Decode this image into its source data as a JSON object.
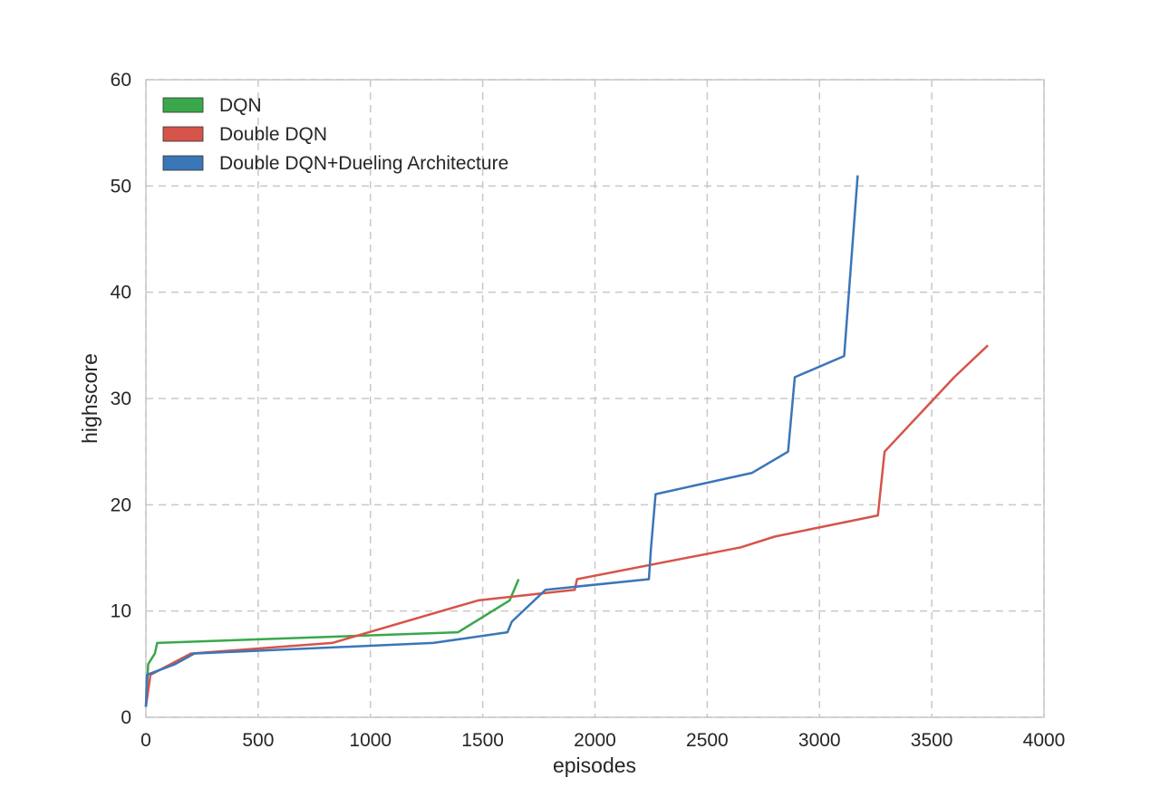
{
  "chart_data": {
    "type": "line",
    "title": "",
    "xlabel": "episodes",
    "ylabel": "highscore",
    "xlim": [
      0,
      4000
    ],
    "ylim": [
      0,
      60
    ],
    "xticks": [
      0,
      500,
      1000,
      1500,
      2000,
      2500,
      3000,
      3500,
      4000
    ],
    "yticks": [
      0,
      10,
      20,
      30,
      40,
      50,
      60
    ],
    "grid": true,
    "legend_position": "top-left",
    "series": [
      {
        "name": "DQN",
        "color": "#3aa84a",
        "x": [
          0,
          10,
          40,
          50,
          1390,
          1620,
          1660
        ],
        "y": [
          1,
          5,
          6,
          7,
          8,
          11,
          13
        ]
      },
      {
        "name": "Double DQN",
        "color": "#d6544a",
        "x": [
          0,
          20,
          200,
          830,
          1480,
          1910,
          1920,
          2650,
          2800,
          3260,
          3290,
          3600,
          3750
        ],
        "y": [
          1,
          4,
          6,
          7,
          11,
          12,
          13,
          16,
          17,
          19,
          25,
          32,
          35
        ]
      },
      {
        "name": "Double DQN+Dueling Architecture",
        "color": "#3a76b8",
        "x": [
          0,
          5,
          130,
          215,
          1280,
          1610,
          1630,
          1780,
          2240,
          2250,
          2270,
          2700,
          2860,
          2890,
          3110,
          3170
        ],
        "y": [
          1,
          4,
          5,
          6,
          7,
          8,
          9,
          12,
          13,
          16,
          21,
          23,
          25,
          32,
          34,
          51
        ]
      }
    ]
  }
}
